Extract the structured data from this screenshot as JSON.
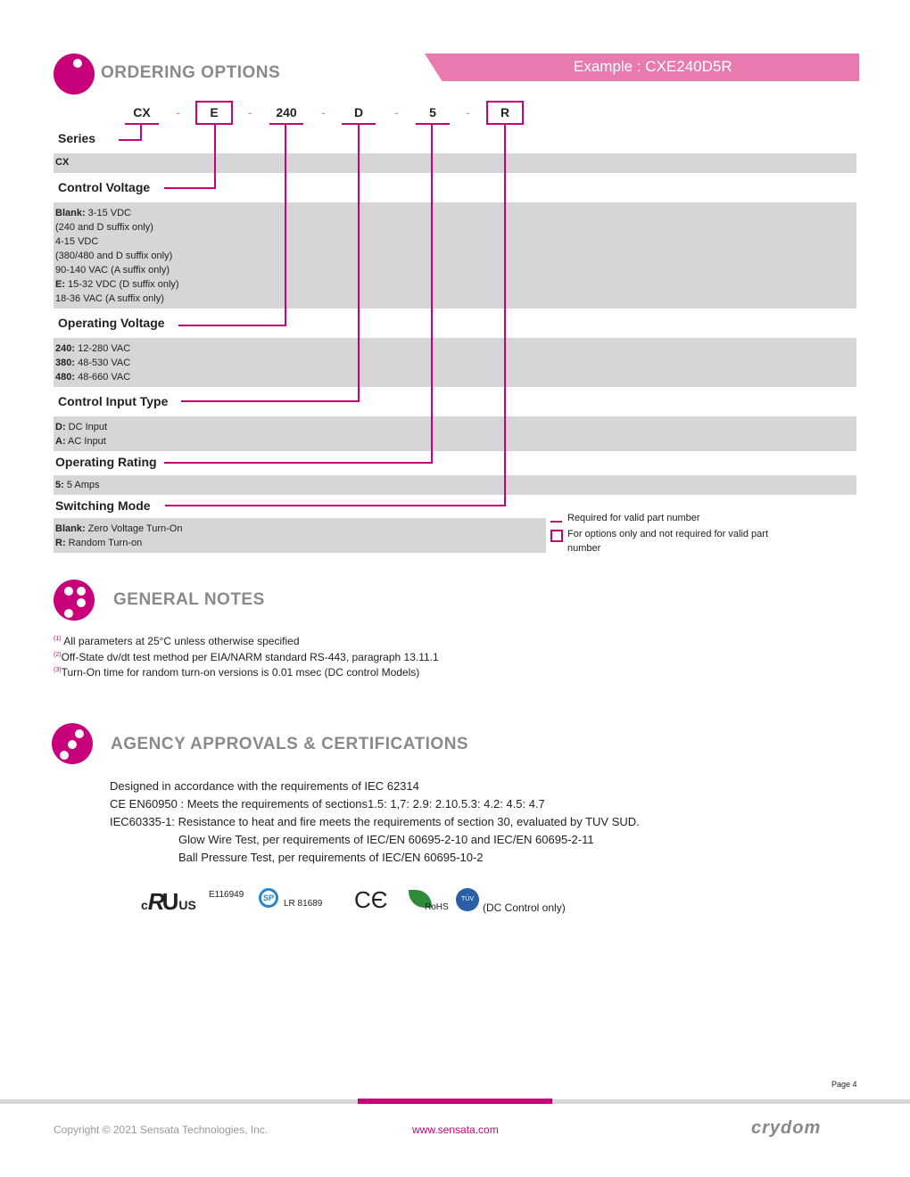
{
  "ordering": {
    "title": "ORDERING OPTIONS",
    "example": "Example : CXE240D5R",
    "codes": [
      "CX",
      "E",
      "240",
      "D",
      "5",
      "R"
    ],
    "separator": "-",
    "sections": [
      {
        "label": "Series",
        "lines": [
          {
            "b": "CX",
            "t": ""
          }
        ]
      },
      {
        "label": "Control Voltage",
        "lines": [
          {
            "b": "Blank:",
            "t": " 3-15 VDC"
          },
          {
            "b": "",
            "t": "(240 and D suffix only)"
          },
          {
            "b": "",
            "t": "4-15 VDC"
          },
          {
            "b": "",
            "t": "(380/480 and D suffix only)"
          },
          {
            "b": "",
            "t": "90-140 VAC (A suffix only)"
          },
          {
            "b": "E:",
            "t": " 15-32 VDC (D suffix only)"
          },
          {
            "b": "",
            "t": "18-36 VAC (A suffix only)"
          }
        ]
      },
      {
        "label": "Operating Voltage",
        "lines": [
          {
            "b": "240:",
            "t": " 12-280 VAC"
          },
          {
            "b": "380:",
            "t": " 48-530 VAC"
          },
          {
            "b": "480:",
            "t": " 48-660 VAC"
          }
        ]
      },
      {
        "label": "Control Input Type",
        "lines": [
          {
            "b": "D:",
            "t": " DC Input"
          },
          {
            "b": "A:",
            "t": " AC Input"
          }
        ]
      },
      {
        "label": "Operating Rating",
        "lines": [
          {
            "b": "5:",
            "t": " 5 Amps"
          }
        ]
      },
      {
        "label": "Switching Mode",
        "lines": [
          {
            "b": "Blank:",
            "t": " Zero Voltage Turn-On"
          },
          {
            "b": "R:",
            "t": " Random Turn-on"
          }
        ]
      }
    ],
    "legend": {
      "required": "Required for valid part number",
      "optional": "For options only and not required for valid part number"
    }
  },
  "notes": {
    "title": "GENERAL NOTES",
    "items": [
      {
        "sup": "(1)",
        "text": " All parameters at 25°C unless otherwise specified"
      },
      {
        "sup": "(2)",
        "text": "Off-State dv/dt test method per EIA/NARM standard RS-443, paragraph 13.11.1"
      },
      {
        "sup": "(3)",
        "text": "Turn-On time for random turn-on versions is 0.01 msec (DC control Models)"
      }
    ]
  },
  "agency": {
    "title": "AGENCY APPROVALS & CERTIFICATIONS",
    "lines": [
      "Designed in accordance with the requirements of IEC 62314",
      "CE EN60950 : Meets the requirements of sections1.5: 1,7: 2.9: 2.10.5.3: 4.2: 4.5: 4.7",
      "IEC60335-1: Resistance to heat and fire meets the requirements of section 30, evaluated by TUV SUD.",
      "Glow Wire Test, per requirements of IEC/EN 60695-2-10 and IEC/EN 60695-2-11",
      "Ball Pressure Test, per requirements of IEC/EN 60695-10-2"
    ],
    "logos": {
      "ul": "E116949",
      "csa": "LR 81689",
      "rohs": "RoHS",
      "tuv": "(DC Control only)",
      "ul_c": "c",
      "ul_us": "US"
    }
  },
  "footer": {
    "page": "Page 4",
    "copyright": "Copyright © 2021 Sensata Technologies, Inc.",
    "url": "www.sensata.com",
    "logo": "crydom"
  },
  "colors": {
    "accent": "#c8007a",
    "banner": "#e87ab0",
    "row": "#d6d6d8"
  }
}
